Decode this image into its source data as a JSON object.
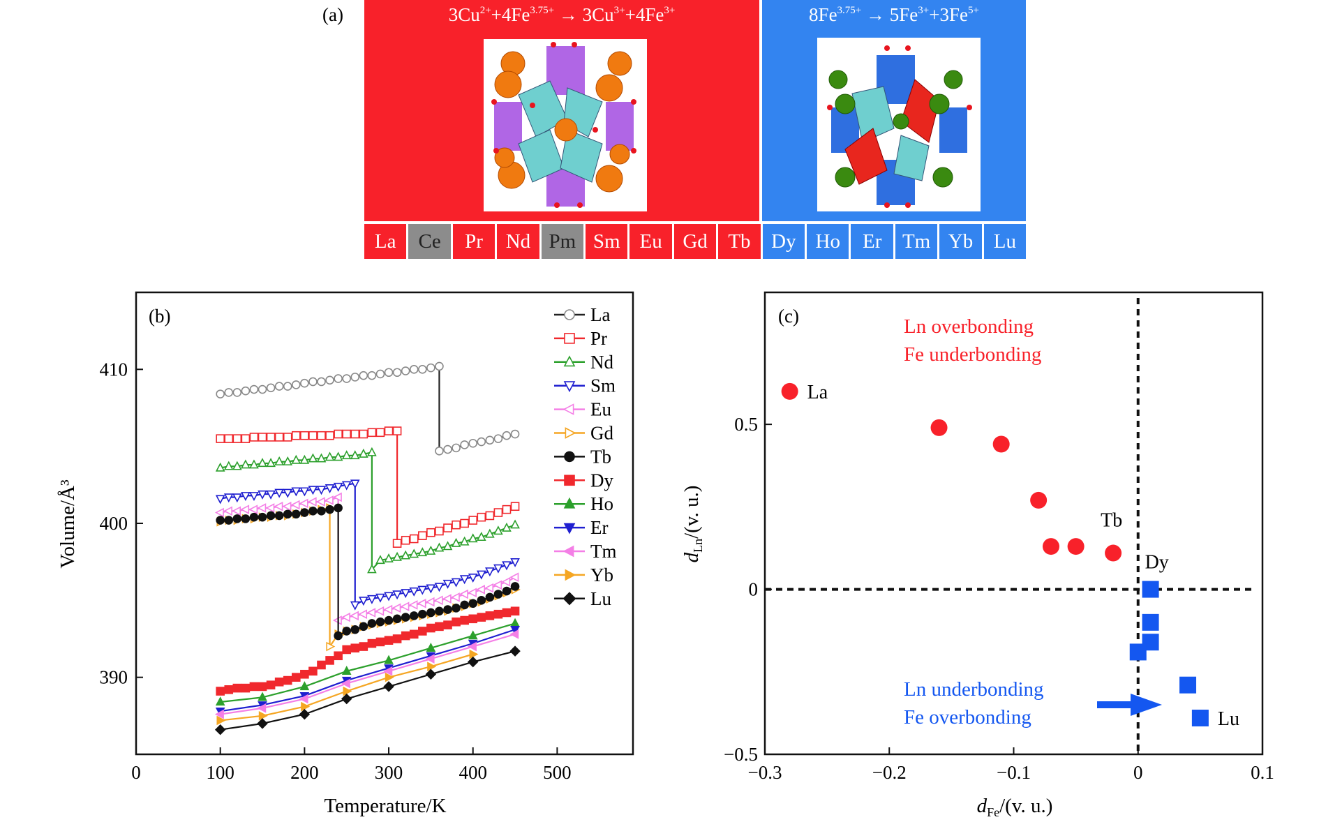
{
  "panel_a": {
    "label": "(a)",
    "left_equation": [
      {
        "t": "3Cu",
        "sup": "2+"
      },
      {
        "t": "+4Fe",
        "sup": "3.75+"
      },
      {
        "t": " → 3Cu",
        "sup": "3+"
      },
      {
        "t": "+4Fe",
        "sup": "3+"
      }
    ],
    "right_equation": [
      {
        "t": "8Fe",
        "sup": "3.75+"
      },
      {
        "t": " → 5Fe",
        "sup": "3+"
      },
      {
        "t": "+3Fe",
        "sup": "5+"
      }
    ],
    "colors": {
      "red": "#f8212a",
      "blue": "#3384f0",
      "gray": "#8c8c8c"
    },
    "elements": [
      {
        "symbol": "La",
        "group": "red"
      },
      {
        "symbol": "Ce",
        "group": "gray"
      },
      {
        "symbol": "Pr",
        "group": "red"
      },
      {
        "symbol": "Nd",
        "group": "red"
      },
      {
        "symbol": "Pm",
        "group": "gray"
      },
      {
        "symbol": "Sm",
        "group": "red"
      },
      {
        "symbol": "Eu",
        "group": "red"
      },
      {
        "symbol": "Gd",
        "group": "red"
      },
      {
        "symbol": "Tb",
        "group": "red"
      },
      {
        "symbol": "Dy",
        "group": "blue"
      },
      {
        "symbol": "Ho",
        "group": "blue"
      },
      {
        "symbol": "Er",
        "group": "blue"
      },
      {
        "symbol": "Tm",
        "group": "blue"
      },
      {
        "symbol": "Yb",
        "group": "blue"
      },
      {
        "symbol": "Lu",
        "group": "blue"
      }
    ]
  },
  "chart_data": [
    {
      "panel": "(b)",
      "type": "line",
      "xlabel": "Temperature/K",
      "ylabel": "Volume/Å³",
      "xlim": [
        0,
        590
      ],
      "ylim": [
        385,
        415
      ],
      "xticks": [
        0,
        100,
        200,
        300,
        400,
        500
      ],
      "yticks": [
        390,
        400,
        410
      ],
      "grid": false,
      "legend": "top-right",
      "series": [
        {
          "name": "La",
          "color": "#222222",
          "marker": "circle",
          "filled": false,
          "markerColor": "#888888",
          "x": [
            100,
            110,
            120,
            130,
            140,
            150,
            160,
            170,
            180,
            190,
            200,
            210,
            220,
            230,
            240,
            250,
            260,
            270,
            280,
            290,
            300,
            310,
            320,
            330,
            340,
            350,
            360,
            360,
            370,
            380,
            390,
            400,
            410,
            420,
            430,
            440,
            450
          ],
          "y": [
            408.4,
            408.5,
            408.5,
            408.6,
            408.7,
            408.7,
            408.8,
            408.9,
            408.9,
            409.0,
            409.1,
            409.2,
            409.2,
            409.3,
            409.4,
            409.4,
            409.5,
            409.6,
            409.6,
            409.7,
            409.8,
            409.8,
            409.9,
            410.0,
            410.0,
            410.1,
            410.2,
            404.7,
            404.8,
            404.9,
            405.1,
            405.2,
            405.3,
            405.4,
            405.5,
            405.7,
            405.8
          ]
        },
        {
          "name": "Pr",
          "color": "#f0282d",
          "marker": "square",
          "filled": false,
          "x": [
            100,
            110,
            120,
            130,
            140,
            150,
            160,
            170,
            180,
            190,
            200,
            210,
            220,
            230,
            240,
            250,
            260,
            270,
            280,
            290,
            300,
            310,
            310,
            320,
            330,
            340,
            350,
            360,
            370,
            380,
            390,
            400,
            410,
            420,
            430,
            440,
            450
          ],
          "y": [
            405.5,
            405.5,
            405.5,
            405.5,
            405.6,
            405.6,
            405.6,
            405.6,
            405.6,
            405.7,
            405.7,
            405.7,
            405.7,
            405.7,
            405.8,
            405.8,
            405.8,
            405.8,
            405.9,
            405.9,
            406.0,
            406.0,
            398.7,
            398.9,
            399.0,
            399.2,
            399.4,
            399.5,
            399.7,
            399.9,
            400.0,
            400.2,
            400.4,
            400.5,
            400.7,
            400.9,
            401.1
          ]
        },
        {
          "name": "Nd",
          "color": "#2ca02c",
          "marker": "triangle-up",
          "filled": false,
          "x": [
            100,
            110,
            120,
            130,
            140,
            150,
            160,
            170,
            180,
            190,
            200,
            210,
            220,
            230,
            240,
            250,
            260,
            270,
            280,
            280,
            290,
            300,
            310,
            320,
            330,
            340,
            350,
            360,
            370,
            380,
            390,
            400,
            410,
            420,
            430,
            440,
            450
          ],
          "y": [
            403.6,
            403.7,
            403.7,
            403.8,
            403.8,
            403.9,
            403.9,
            404.0,
            404.0,
            404.1,
            404.1,
            404.2,
            404.2,
            404.3,
            404.3,
            404.4,
            404.4,
            404.5,
            404.6,
            397.0,
            397.6,
            397.7,
            397.8,
            397.9,
            398.0,
            398.1,
            398.2,
            398.4,
            398.5,
            398.7,
            398.8,
            399.0,
            399.1,
            399.3,
            399.5,
            399.7,
            399.9
          ]
        },
        {
          "name": "Sm",
          "color": "#1f1fd0",
          "marker": "triangle-down",
          "filled": false,
          "x": [
            100,
            110,
            120,
            130,
            140,
            150,
            160,
            170,
            180,
            190,
            200,
            210,
            220,
            230,
            240,
            250,
            260,
            260,
            270,
            280,
            290,
            300,
            310,
            320,
            330,
            340,
            350,
            360,
            370,
            380,
            390,
            400,
            410,
            420,
            430,
            440,
            450
          ],
          "y": [
            401.6,
            401.7,
            401.7,
            401.8,
            401.8,
            401.9,
            401.9,
            402.0,
            402.0,
            402.1,
            402.1,
            402.2,
            402.2,
            402.3,
            402.4,
            402.5,
            402.6,
            394.7,
            395.0,
            395.1,
            395.2,
            395.3,
            395.4,
            395.5,
            395.6,
            395.7,
            395.8,
            395.9,
            396.1,
            396.2,
            396.4,
            396.5,
            396.7,
            396.9,
            397.1,
            397.3,
            397.5
          ]
        },
        {
          "name": "Eu",
          "color": "#f47fe6",
          "marker": "triangle-left",
          "filled": false,
          "x": [
            100,
            110,
            120,
            130,
            140,
            150,
            160,
            170,
            180,
            190,
            200,
            210,
            220,
            230,
            240,
            240,
            250,
            260,
            270,
            280,
            290,
            300,
            310,
            320,
            330,
            340,
            350,
            360,
            370,
            380,
            390,
            400,
            410,
            420,
            430,
            440,
            450
          ],
          "y": [
            400.7,
            400.8,
            400.8,
            400.9,
            400.9,
            401.0,
            401.0,
            401.1,
            401.1,
            401.2,
            401.3,
            401.4,
            401.4,
            401.5,
            401.7,
            393.7,
            393.9,
            394.0,
            394.1,
            394.2,
            394.3,
            394.4,
            394.5,
            394.6,
            394.7,
            394.8,
            394.9,
            395.0,
            395.1,
            395.2,
            395.4,
            395.5,
            395.7,
            395.8,
            396.0,
            396.2,
            396.5
          ]
        },
        {
          "name": "Gd",
          "color": "#f5a623",
          "marker": "triangle-right",
          "filled": false,
          "x": [
            100,
            110,
            120,
            130,
            140,
            150,
            160,
            170,
            180,
            190,
            200,
            210,
            220,
            230,
            230,
            240,
            250,
            260,
            270,
            280,
            290,
            300,
            310,
            320,
            330,
            340,
            350,
            360,
            370,
            380,
            390,
            400,
            410,
            420,
            430,
            440,
            450
          ],
          "y": [
            400.1,
            400.2,
            400.2,
            400.3,
            400.3,
            400.4,
            400.4,
            400.5,
            400.5,
            400.6,
            400.7,
            400.8,
            400.9,
            401.0,
            392.0,
            392.8,
            393.0,
            393.1,
            393.3,
            393.4,
            393.5,
            393.6,
            393.7,
            393.8,
            393.9,
            394.0,
            394.1,
            394.2,
            394.3,
            394.5,
            394.6,
            394.8,
            394.9,
            395.1,
            395.3,
            395.5,
            395.7
          ]
        },
        {
          "name": "Tb",
          "color": "#111111",
          "marker": "circle",
          "filled": true,
          "x": [
            100,
            110,
            120,
            130,
            140,
            150,
            160,
            170,
            180,
            190,
            200,
            210,
            220,
            230,
            240,
            240,
            250,
            260,
            270,
            280,
            290,
            300,
            310,
            320,
            330,
            340,
            350,
            360,
            370,
            380,
            390,
            400,
            410,
            420,
            430,
            440,
            450
          ],
          "y": [
            400.2,
            400.2,
            400.3,
            400.3,
            400.4,
            400.4,
            400.5,
            400.5,
            400.6,
            400.6,
            400.7,
            400.8,
            400.8,
            400.9,
            401.0,
            392.7,
            393.0,
            393.1,
            393.3,
            393.5,
            393.6,
            393.7,
            393.8,
            393.9,
            394.0,
            394.1,
            394.2,
            394.3,
            394.4,
            394.5,
            394.7,
            394.8,
            395.0,
            395.2,
            395.4,
            395.6,
            395.9
          ]
        },
        {
          "name": "Dy",
          "color": "#f0282d",
          "marker": "square",
          "filled": true,
          "x": [
            100,
            110,
            120,
            130,
            140,
            150,
            160,
            170,
            180,
            190,
            200,
            210,
            220,
            230,
            240,
            250,
            260,
            270,
            280,
            290,
            300,
            310,
            320,
            330,
            340,
            350,
            360,
            370,
            380,
            390,
            400,
            410,
            420,
            430,
            440,
            450
          ],
          "y": [
            389.1,
            389.2,
            389.3,
            389.3,
            389.4,
            389.4,
            389.5,
            389.7,
            389.8,
            390.0,
            390.2,
            390.4,
            390.8,
            391.1,
            391.4,
            391.8,
            391.9,
            392.0,
            392.2,
            392.3,
            392.4,
            392.5,
            392.7,
            392.8,
            393.0,
            393.2,
            393.3,
            393.4,
            393.6,
            393.7,
            393.8,
            393.9,
            394.0,
            394.1,
            394.2,
            394.3
          ]
        },
        {
          "name": "Ho",
          "color": "#2ca02c",
          "marker": "triangle-up",
          "filled": true,
          "x": [
            100,
            150,
            200,
            250,
            300,
            350,
            400,
            450
          ],
          "y": [
            388.4,
            388.7,
            389.4,
            390.4,
            391.1,
            391.9,
            392.7,
            393.5
          ]
        },
        {
          "name": "Er",
          "color": "#1f1fd0",
          "marker": "triangle-down",
          "filled": true,
          "x": [
            100,
            150,
            200,
            250,
            300,
            350,
            400,
            450
          ],
          "y": [
            387.8,
            388.2,
            388.8,
            389.8,
            390.6,
            391.4,
            392.2,
            393.1
          ]
        },
        {
          "name": "Tm",
          "color": "#f47fe6",
          "marker": "triangle-left",
          "filled": true,
          "x": [
            100,
            150,
            200,
            250,
            300,
            350,
            400,
            450
          ],
          "y": [
            387.6,
            388.0,
            388.6,
            389.6,
            390.4,
            391.2,
            392.0,
            392.8
          ]
        },
        {
          "name": "Yb",
          "color": "#f5a623",
          "marker": "triangle-right",
          "filled": true,
          "x": [
            100,
            150,
            200,
            250,
            300,
            350,
            400
          ],
          "y": [
            387.2,
            387.5,
            388.1,
            389.1,
            390.0,
            390.7,
            391.5
          ]
        },
        {
          "name": "Lu",
          "color": "#111111",
          "marker": "diamond",
          "filled": true,
          "x": [
            100,
            150,
            200,
            250,
            300,
            350,
            400,
            450
          ],
          "y": [
            386.6,
            387.0,
            387.6,
            388.6,
            389.4,
            390.2,
            391.0,
            391.7
          ]
        }
      ]
    },
    {
      "panel": "(c)",
      "type": "scatter",
      "xlabel": {
        "symbol": "d",
        "sub": "Fe",
        "unit": "/(v. u.)"
      },
      "ylabel": {
        "symbol": "d",
        "sub": "Ln",
        "unit": "/(v. u.)"
      },
      "xlim": [
        -0.3,
        0.1
      ],
      "ylim": [
        -0.5,
        0.9
      ],
      "xticks": [
        -0.3,
        -0.2,
        -0.1,
        0,
        0.1
      ],
      "xtick_labels": [
        "−0.3",
        "−0.2",
        "−0.1",
        "0",
        "0.1"
      ],
      "yticks": [
        -0.5,
        0,
        0.5
      ],
      "ytick_labels": [
        "−0.5",
        "0",
        "0.5"
      ],
      "grid": false,
      "reference_lines": {
        "x": 0,
        "y": 0,
        "style": "dashed"
      },
      "annotations": {
        "upper": [
          "Ln overbonding",
          "Fe underbonding"
        ],
        "lower": [
          "Ln underbonding",
          "Fe overbonding"
        ]
      },
      "series": [
        {
          "marker": "circle",
          "color": "#f8212a",
          "points": [
            {
              "x": -0.28,
              "y": 0.6,
              "label": "La"
            },
            {
              "x": -0.16,
              "y": 0.49
            },
            {
              "x": -0.11,
              "y": 0.44
            },
            {
              "x": -0.08,
              "y": 0.27
            },
            {
              "x": -0.07,
              "y": 0.13
            },
            {
              "x": -0.05,
              "y": 0.13
            },
            {
              "x": -0.02,
              "y": 0.11,
              "label": "Tb"
            }
          ]
        },
        {
          "marker": "square",
          "color": "#1457f0",
          "points": [
            {
              "x": 0.01,
              "y": 0.0,
              "label": "Dy"
            },
            {
              "x": 0.01,
              "y": -0.1
            },
            {
              "x": 0.01,
              "y": -0.16
            },
            {
              "x": 0.0,
              "y": -0.19
            },
            {
              "x": 0.04,
              "y": -0.29
            },
            {
              "x": 0.05,
              "y": -0.39,
              "label": "Lu"
            }
          ]
        }
      ]
    }
  ]
}
